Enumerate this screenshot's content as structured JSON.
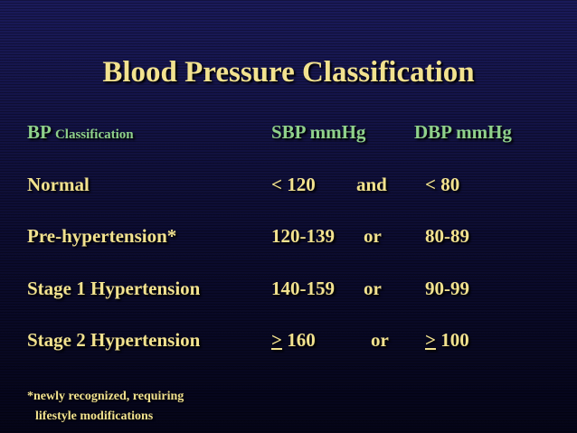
{
  "title": "Blood Pressure Classification",
  "colors": {
    "title": "#f2e28f",
    "header": "#8fd18a",
    "body": "#f2e28f",
    "background": "#14144a"
  },
  "header": {
    "bp_prefix": "BP",
    "classification": "Classification",
    "sbp": "SBP mmHg",
    "dbp": "DBP mmHg"
  },
  "rows": [
    {
      "classification": "Normal",
      "sbp": "< 120",
      "conj": "and",
      "dbp": "< 80"
    },
    {
      "classification": "Pre-hypertension*",
      "sbp": "120-139",
      "conj": "or",
      "dbp": "80-89"
    },
    {
      "classification": "Stage 1 Hypertension",
      "sbp": "140-159",
      "conj": "or",
      "dbp": "90-99"
    },
    {
      "classification": "Stage 2 Hypertension",
      "sbp_symbol": ">",
      "sbp": "160",
      "conj": "or",
      "dbp_symbol": ">",
      "dbp": "100"
    }
  ],
  "footnote": {
    "line1": "*newly recognized, requiring",
    "line2": "lifestyle modifications"
  }
}
